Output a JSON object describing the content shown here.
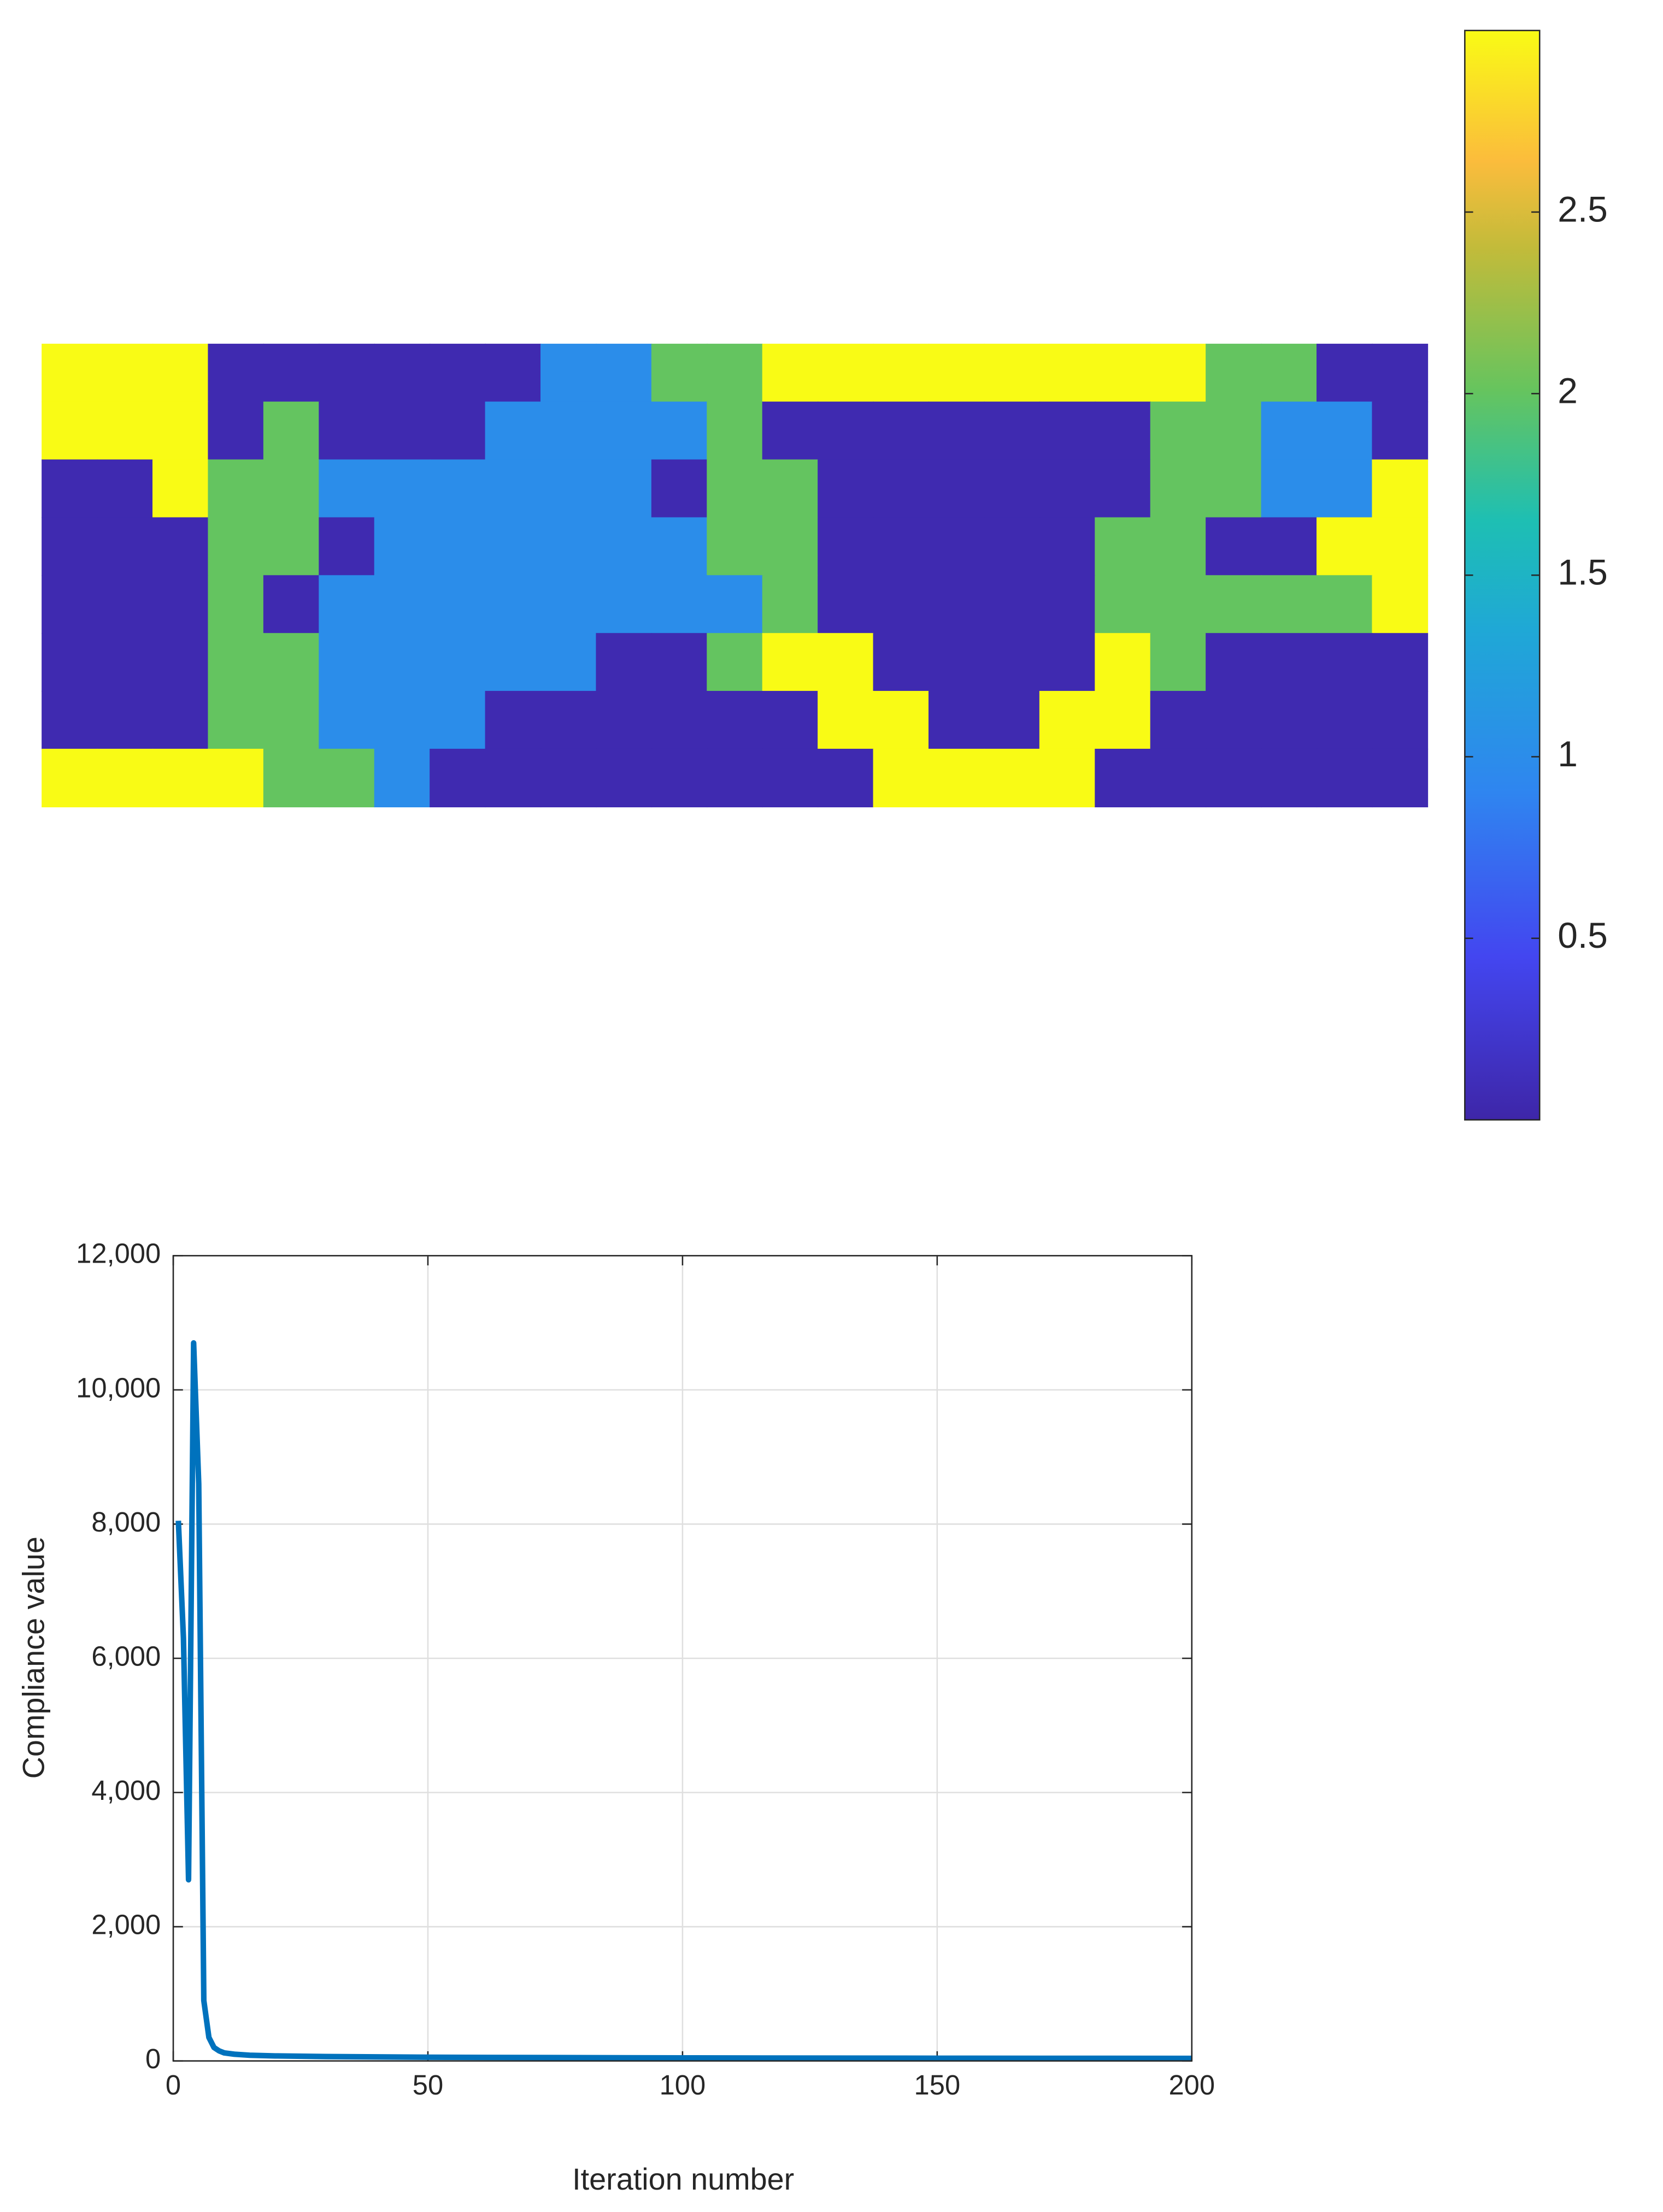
{
  "chart_data": [
    {
      "type": "heatmap",
      "z": [
        [
          3,
          3,
          3,
          0.05,
          0.05,
          0.05,
          0.05,
          0.05,
          0.05,
          1,
          1,
          2,
          2,
          3,
          3,
          3,
          3,
          3,
          3,
          3,
          3,
          2,
          2,
          0.05,
          0.05
        ],
        [
          3,
          3,
          3,
          0.05,
          2,
          0.05,
          0.05,
          0.05,
          1,
          1,
          1,
          1,
          2,
          0.05,
          0.05,
          0.05,
          0.05,
          0.05,
          0.05,
          0.05,
          2,
          2,
          1,
          1,
          0.05
        ],
        [
          0.05,
          0.05,
          3,
          2,
          2,
          1,
          1,
          1,
          1,
          1,
          1,
          0.05,
          2,
          2,
          0.05,
          0.05,
          0.05,
          0.05,
          0.05,
          0.05,
          2,
          2,
          1,
          1,
          3
        ],
        [
          0.05,
          0.05,
          0.05,
          2,
          2,
          0.05,
          1,
          1,
          1,
          1,
          1,
          1,
          2,
          2,
          0.05,
          0.05,
          0.05,
          0.05,
          0.05,
          2,
          2,
          0.05,
          0.05,
          3,
          3
        ],
        [
          0.05,
          0.05,
          0.05,
          2,
          0.05,
          1,
          1,
          1,
          1,
          1,
          1,
          1,
          1,
          2,
          0.05,
          0.05,
          0.05,
          0.05,
          0.05,
          2,
          2,
          2,
          2,
          2,
          3
        ],
        [
          0.05,
          0.05,
          0.05,
          2,
          2,
          1,
          1,
          1,
          1,
          1,
          0.05,
          0.05,
          2,
          3,
          3,
          0.05,
          0.05,
          0.05,
          0.05,
          3,
          2,
          0.05,
          0.05,
          0.05,
          0.05
        ],
        [
          0.05,
          0.05,
          0.05,
          2,
          2,
          1,
          1,
          1,
          0.05,
          0.05,
          0.05,
          0.05,
          0.05,
          0.05,
          3,
          3,
          0.05,
          0.05,
          3,
          3,
          0.05,
          0.05,
          0.05,
          0.05,
          0.05
        ],
        [
          3,
          3,
          3,
          3,
          2,
          2,
          1,
          0.05,
          0.05,
          0.05,
          0.05,
          0.05,
          0.05,
          0.05,
          0.05,
          3,
          3,
          3,
          3,
          0.05,
          0.05,
          0.05,
          0.05,
          0.05,
          0.05
        ]
      ],
      "clim": [
        0,
        3
      ],
      "cticks": [
        0.5,
        1,
        1.5,
        2,
        2.5
      ],
      "colormap": [
        {
          "pos": 0,
          "color": "#3e26a8"
        },
        {
          "pos": 0.15,
          "color": "#4346f0"
        },
        {
          "pos": 0.3,
          "color": "#2f85f0"
        },
        {
          "pos": 0.45,
          "color": "#1fa8d6"
        },
        {
          "pos": 0.55,
          "color": "#1ebfb3"
        },
        {
          "pos": 0.67,
          "color": "#66c45e"
        },
        {
          "pos": 0.8,
          "color": "#c2bb3a"
        },
        {
          "pos": 0.88,
          "color": "#fbbc3c"
        },
        {
          "pos": 1,
          "color": "#f9fb15"
        }
      ]
    },
    {
      "type": "line",
      "x": [
        1,
        2,
        3,
        4,
        5,
        6,
        7,
        8,
        9,
        10,
        12,
        15,
        20,
        30,
        50,
        75,
        100,
        150,
        200
      ],
      "values": [
        8050,
        6300,
        2700,
        10700,
        8600,
        900,
        350,
        200,
        150,
        120,
        100,
        85,
        75,
        65,
        55,
        50,
        45,
        40,
        38
      ],
      "color": "#0072bd",
      "xlabel": "Iteration number",
      "ylabel": "Compliance value",
      "xlim": [
        0,
        200
      ],
      "xticks": [
        0,
        50,
        100,
        150,
        200
      ],
      "ylim": [
        0,
        12000
      ],
      "yticks": [
        0,
        {
          "value": 2000,
          "label": "2,000"
        },
        {
          "value": 4000,
          "label": "4,000"
        },
        {
          "value": 6000,
          "label": "6,000"
        },
        {
          "value": 8000,
          "label": "8,000"
        },
        {
          "value": 10000,
          "label": "10,000"
        },
        {
          "value": 12000,
          "label": "12,000"
        }
      ],
      "grid": true
    }
  ]
}
